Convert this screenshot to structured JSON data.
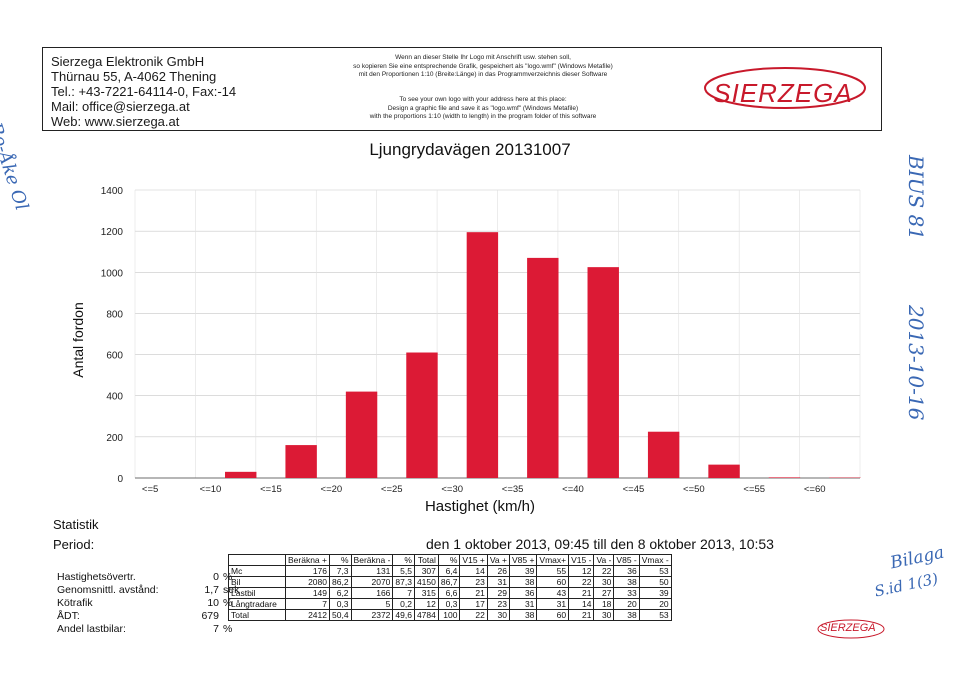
{
  "header": {
    "company_lines": [
      "Sierzega Elektronik GmbH",
      "Thürnau 55, A-4062 Thening",
      "Tel.: +43-7221-64114-0, Fax:-14",
      "Mail: office@sierzega.at",
      "Web: www.sierzega.at"
    ],
    "note_de": [
      "Wenn an dieser Stelle Ihr Logo mit Anschrift usw. stehen soll,",
      "so kopieren Sie eine entsprechende Grafik, gespeichert als \"logo.wmf\" (Windows Metafile)",
      "mit den Proportionen 1:10 (Breite:Länge) in das Programmverzeichnis dieser Software"
    ],
    "note_en": [
      "To see your own logo with your address here at this place:",
      "Design a graphic file and save it as \"logo.wmf\" (Windows Metafile)",
      "with the proportions 1:10 (width to length) in the program folder of this software"
    ],
    "logo_text": "SIERZEGA",
    "brand_color": "#c8192b"
  },
  "chart_data": {
    "type": "bar",
    "title": "Ljungrydavägen 20131007",
    "xlabel": "Hastighet (km/h)",
    "ylabel": "Antal fordon",
    "categories": [
      "<=5",
      "<=10",
      "<=15",
      "<=20",
      "<=25",
      "<=30",
      "<=35",
      "<=40",
      "<=45",
      "<=50",
      "<=55",
      "<=60"
    ],
    "values": [
      0,
      30,
      160,
      420,
      610,
      1195,
      1070,
      1025,
      225,
      65,
      3,
      2
    ],
    "yticks": [
      0,
      200,
      400,
      600,
      800,
      1000,
      1200,
      1400
    ],
    "ylim": [
      0,
      1400
    ],
    "bar_color": "#dc1a35"
  },
  "stats": {
    "heading": "Statistik",
    "period_label": "Period:",
    "period_value": "den 1 oktober 2013, 09:45 till den 8 oktober 2013, 10:53",
    "summary": [
      {
        "label": "Hastighetsövertr.",
        "value": "0",
        "unit": "%"
      },
      {
        "label": "Genomsnittl. avstånd:",
        "value": "1,7",
        "unit": "sek"
      },
      {
        "label": "Kötrafik",
        "value": "10",
        "unit": "%"
      },
      {
        "label": "ÅDT:",
        "value": "679",
        "unit": ""
      },
      {
        "label": "Andel lastbilar:",
        "value": "7",
        "unit": "%"
      }
    ],
    "table": {
      "headers": [
        "",
        "Beräkna +",
        "%",
        "Beräkna -",
        "%",
        "Total",
        "%",
        "V15 +",
        "Va +",
        "V85 +",
        "Vmax+",
        "V15 -",
        "Va -",
        "V85 -",
        "Vmax -"
      ],
      "rows": [
        [
          "Mc",
          "176",
          "7,3",
          "131",
          "5,5",
          "307",
          "6,4",
          "14",
          "26",
          "39",
          "55",
          "12",
          "22",
          "36",
          "53"
        ],
        [
          "Bil",
          "2080",
          "86,2",
          "2070",
          "87,3",
          "4150",
          "86,7",
          "23",
          "31",
          "38",
          "60",
          "22",
          "30",
          "38",
          "50"
        ],
        [
          "Lastbil",
          "149",
          "6,2",
          "166",
          "7",
          "315",
          "6,6",
          "21",
          "29",
          "36",
          "43",
          "21",
          "27",
          "33",
          "39"
        ],
        [
          "Långtradare",
          "7",
          "0,3",
          "5",
          "0,2",
          "12",
          "0,3",
          "17",
          "23",
          "31",
          "31",
          "14",
          "18",
          "20",
          "20"
        ],
        [
          "Total",
          "2412",
          "50,4",
          "2372",
          "49,6",
          "4784",
          "100",
          "22",
          "30",
          "38",
          "60",
          "21",
          "30",
          "38",
          "53"
        ]
      ]
    }
  },
  "handwriting": {
    "left_margin": "Bo-Åke Ol",
    "right_code": "BIUS 81",
    "right_date": "2013-10-16",
    "right_bottom_1": "Bilaga",
    "right_bottom_2": "S.id 1(3)"
  },
  "footer_logo": "SIERZEGA"
}
